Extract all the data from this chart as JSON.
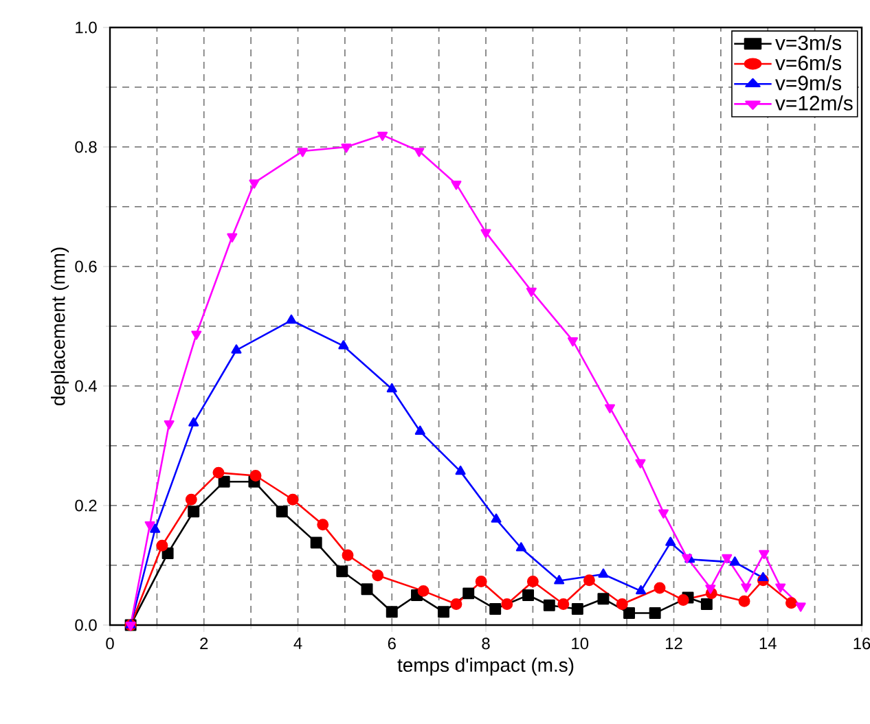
{
  "chart_data": {
    "type": "line",
    "xlabel": "temps d'impact (m.s)",
    "ylabel": "deplacement (mm)",
    "xlim": [
      0,
      16
    ],
    "ylim": [
      0,
      1.0
    ],
    "xticks": [
      0,
      2,
      4,
      6,
      8,
      10,
      12,
      14,
      16
    ],
    "yticks": [
      {
        "value": 0,
        "label": "0.0"
      },
      {
        "value": 0.2,
        "label": "0.2"
      },
      {
        "value": 0.4,
        "label": "0.4"
      },
      {
        "value": 0.6,
        "label": "0.6"
      },
      {
        "value": 0.8,
        "label": "0.8"
      },
      {
        "value": 1.0,
        "label": "1.0"
      }
    ],
    "grid": true,
    "legend": "top right",
    "line_style": "solid",
    "series": [
      {
        "name": "v=3m/s",
        "color": "#000000",
        "marker": "square",
        "x": [
          0.44,
          1.23,
          1.78,
          2.43,
          3.07,
          3.66,
          4.39,
          4.94,
          5.47,
          6.0,
          6.53,
          7.1,
          7.63,
          8.2,
          8.9,
          9.35,
          9.95,
          10.5,
          11.05,
          11.6,
          12.3,
          12.7
        ],
        "values": [
          0.0,
          0.12,
          0.19,
          0.24,
          0.24,
          0.19,
          0.138,
          0.09,
          0.06,
          0.022,
          0.05,
          0.022,
          0.053,
          0.027,
          0.05,
          0.033,
          0.027,
          0.044,
          0.02,
          0.02,
          0.046,
          0.035
        ]
      },
      {
        "name": "v=6m/s",
        "color": "#ff0000",
        "marker": "circle",
        "x": [
          0.44,
          1.11,
          1.73,
          2.31,
          3.1,
          3.89,
          4.53,
          5.06,
          5.7,
          6.67,
          7.37,
          7.9,
          8.45,
          9.0,
          9.65,
          10.2,
          10.9,
          11.7,
          12.2,
          12.8,
          13.5,
          13.9,
          14.5
        ],
        "values": [
          0.0,
          0.133,
          0.21,
          0.255,
          0.25,
          0.21,
          0.168,
          0.117,
          0.083,
          0.057,
          0.035,
          0.073,
          0.035,
          0.073,
          0.035,
          0.075,
          0.035,
          0.062,
          0.042,
          0.053,
          0.04,
          0.075,
          0.037
        ]
      },
      {
        "name": "v=9m/s",
        "color": "#0000ff",
        "marker": "triangle",
        "x": [
          0.44,
          0.96,
          1.78,
          2.69,
          3.86,
          4.97,
          6.0,
          6.6,
          7.46,
          8.22,
          8.75,
          9.56,
          10.5,
          11.3,
          11.93,
          12.34,
          13.3,
          13.9
        ],
        "values": [
          0.0,
          0.16,
          0.338,
          0.46,
          0.51,
          0.467,
          0.395,
          0.324,
          0.257,
          0.177,
          0.129,
          0.074,
          0.085,
          0.057,
          0.138,
          0.11,
          0.105,
          0.079
        ]
      },
      {
        "name": "v=12m/s",
        "color": "#ff00ff",
        "marker": "triangle down",
        "x": [
          0.44,
          0.85,
          1.26,
          1.84,
          2.6,
          3.07,
          4.1,
          5.03,
          5.8,
          6.58,
          7.37,
          8.0,
          8.97,
          9.85,
          10.64,
          11.29,
          11.78,
          12.28,
          12.78,
          13.13,
          13.54,
          13.92,
          14.27,
          14.7
        ],
        "values": [
          0.0,
          0.168,
          0.337,
          0.487,
          0.65,
          0.74,
          0.793,
          0.8,
          0.82,
          0.793,
          0.738,
          0.657,
          0.559,
          0.476,
          0.364,
          0.272,
          0.188,
          0.113,
          0.062,
          0.113,
          0.064,
          0.12,
          0.064,
          0.032
        ]
      }
    ]
  }
}
